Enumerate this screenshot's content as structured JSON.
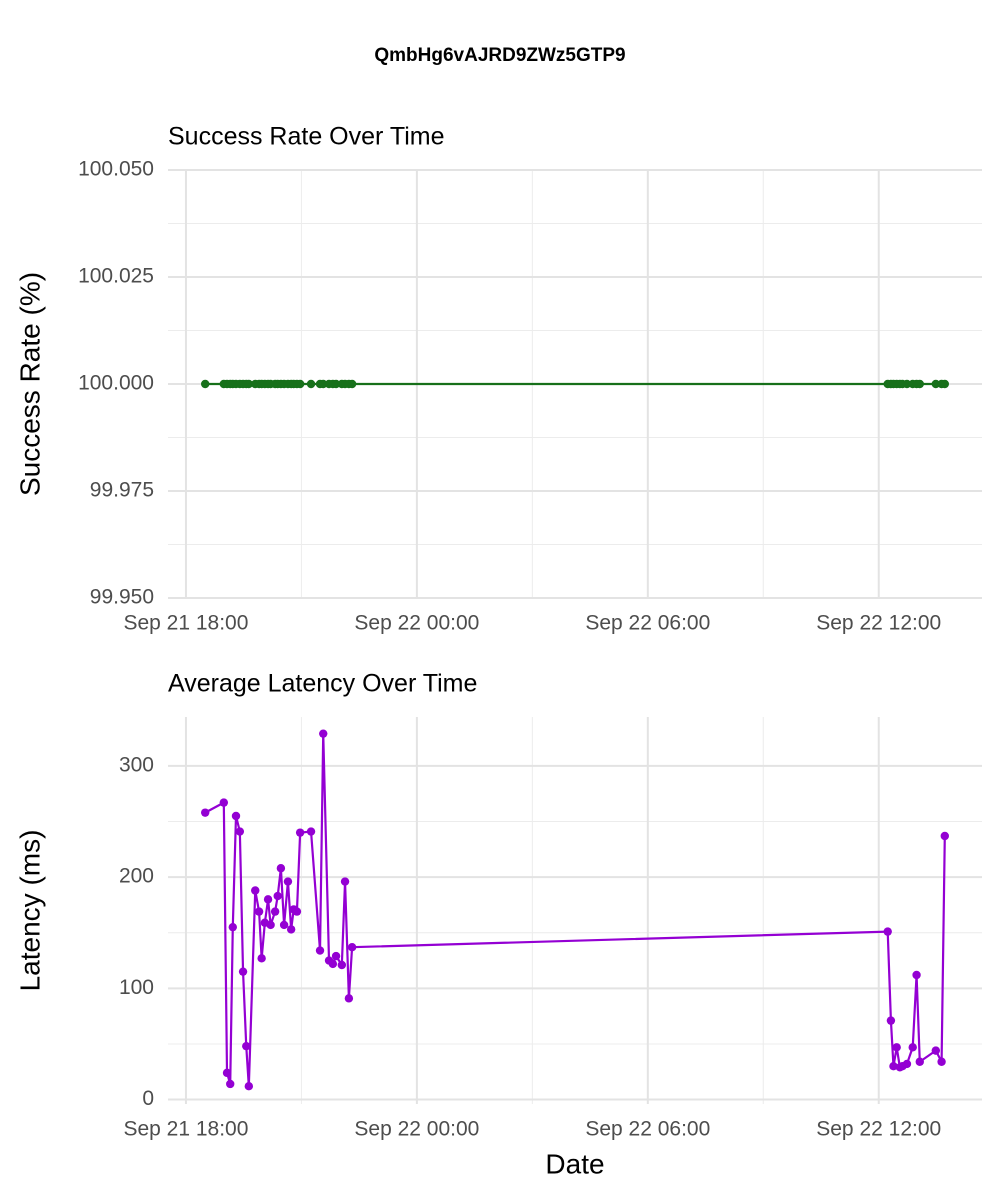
{
  "title": "QmbHg6vAJRD9ZWz5GTP9",
  "chart_data": [
    {
      "type": "line",
      "title": "Success Rate Over Time",
      "ylabel": "Success Rate (%)",
      "x": [
        "Sep 21 18:30",
        "Sep 21 18:59",
        "Sep 21 19:04",
        "Sep 21 19:09",
        "Sep 21 19:13",
        "Sep 21 19:18",
        "Sep 21 19:24",
        "Sep 21 19:29",
        "Sep 21 19:34",
        "Sep 21 19:38",
        "Sep 21 19:48",
        "Sep 21 19:54",
        "Sep 21 19:58",
        "Sep 21 20:03",
        "Sep 21 20:08",
        "Sep 21 20:12",
        "Sep 21 20:19",
        "Sep 21 20:23",
        "Sep 21 20:28",
        "Sep 21 20:33",
        "Sep 21 20:39",
        "Sep 21 20:44",
        "Sep 21 20:48",
        "Sep 21 20:53",
        "Sep 21 20:58",
        "Sep 21 21:15",
        "Sep 21 21:29",
        "Sep 21 21:34",
        "Sep 21 21:43",
        "Sep 21 21:49",
        "Sep 21 21:54",
        "Sep 21 22:03",
        "Sep 21 22:08",
        "Sep 21 22:14",
        "Sep 21 22:19",
        "Sep 22 12:14",
        "Sep 22 12:19",
        "Sep 22 12:23",
        "Sep 22 12:28",
        "Sep 22 12:33",
        "Sep 22 12:37",
        "Sep 22 12:44",
        "Sep 22 12:53",
        "Sep 22 12:59",
        "Sep 22 13:04",
        "Sep 22 13:29",
        "Sep 22 13:38",
        "Sep 22 13:43"
      ],
      "series": [
        {
          "color": "#17701a",
          "values": [
            100,
            100,
            100,
            100,
            100,
            100,
            100,
            100,
            100,
            100,
            100,
            100,
            100,
            100,
            100,
            100,
            100,
            100,
            100,
            100,
            100,
            100,
            100,
            100,
            100,
            100,
            100,
            100,
            100,
            100,
            100,
            100,
            100,
            100,
            100,
            100,
            100,
            100,
            100,
            100,
            100,
            100,
            100,
            100,
            100,
            100,
            100,
            100
          ]
        }
      ],
      "xlim": [
        "Sep 21 17:32",
        "Sep 22 14:41"
      ],
      "xticks": [
        "Sep 21 18:00",
        "Sep 22 00:00",
        "Sep 22 06:00",
        "Sep 22 12:00"
      ],
      "ylim": [
        99.95,
        100.05
      ],
      "yticks": [
        {
          "value": 99.95,
          "label": "99.950"
        },
        {
          "value": 99.975,
          "label": "99.975"
        },
        {
          "value": 100,
          "label": "100.000"
        },
        {
          "value": 100.025,
          "label": "100.025"
        },
        {
          "value": 100.05,
          "label": "100.050"
        }
      ],
      "grid": true
    },
    {
      "type": "line",
      "title": "Average Latency Over Time",
      "ylabel": "Latency (ms)",
      "xlabel": "Date",
      "x": [
        "Sep 21 18:30",
        "Sep 21 18:59",
        "Sep 21 19:04",
        "Sep 21 19:09",
        "Sep 21 19:13",
        "Sep 21 19:18",
        "Sep 21 19:24",
        "Sep 21 19:29",
        "Sep 21 19:34",
        "Sep 21 19:38",
        "Sep 21 19:48",
        "Sep 21 19:54",
        "Sep 21 19:58",
        "Sep 21 20:03",
        "Sep 21 20:08",
        "Sep 21 20:12",
        "Sep 21 20:19",
        "Sep 21 20:23",
        "Sep 21 20:28",
        "Sep 21 20:33",
        "Sep 21 20:39",
        "Sep 21 20:44",
        "Sep 21 20:48",
        "Sep 21 20:53",
        "Sep 21 20:58",
        "Sep 21 21:15",
        "Sep 21 21:29",
        "Sep 21 21:34",
        "Sep 21 21:43",
        "Sep 21 21:49",
        "Sep 21 21:54",
        "Sep 21 22:03",
        "Sep 21 22:08",
        "Sep 21 22:14",
        "Sep 21 22:19",
        "Sep 22 12:14",
        "Sep 22 12:19",
        "Sep 22 12:23",
        "Sep 22 12:28",
        "Sep 22 12:33",
        "Sep 22 12:37",
        "Sep 22 12:44",
        "Sep 22 12:53",
        "Sep 22 12:59",
        "Sep 22 13:04",
        "Sep 22 13:29",
        "Sep 22 13:38",
        "Sep 22 13:43"
      ],
      "series": [
        {
          "color": "#9400d3",
          "values": [
            258,
            267,
            24,
            14,
            155,
            255,
            241,
            115,
            48,
            12,
            188,
            169,
            127,
            159,
            180,
            157,
            169,
            183,
            208,
            157,
            196,
            153,
            171,
            169,
            240,
            241,
            134,
            329,
            125,
            122,
            129,
            121,
            196,
            91,
            137,
            151,
            71,
            30,
            47,
            29,
            30,
            32,
            47,
            112,
            34,
            44,
            34,
            237
          ]
        }
      ],
      "xlim": [
        "Sep 21 17:32",
        "Sep 22 14:41"
      ],
      "xticks": [
        "Sep 21 18:00",
        "Sep 22 00:00",
        "Sep 22 06:00",
        "Sep 22 12:00"
      ],
      "ylim": [
        -4,
        344
      ],
      "yticks": [
        0,
        100,
        200,
        300
      ],
      "grid": true
    }
  ]
}
